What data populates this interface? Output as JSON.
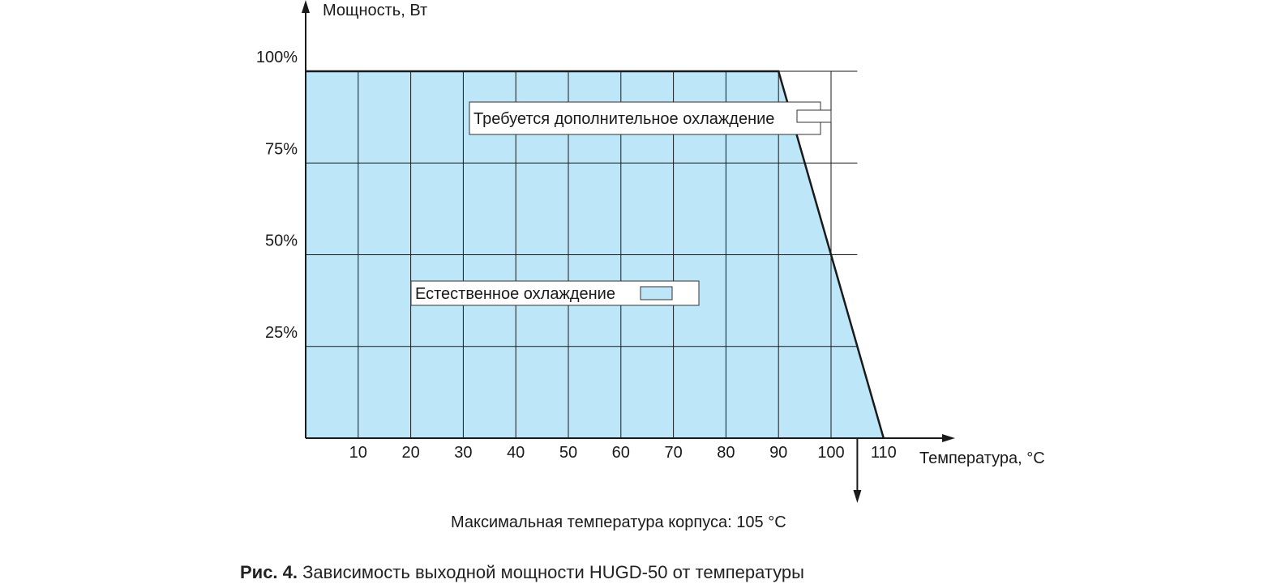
{
  "chart_data": {
    "type": "area",
    "ylabel": "Мощность, Вт",
    "xlabel": "Температура, °C",
    "x_ticks": [
      10,
      20,
      30,
      40,
      50,
      60,
      70,
      80,
      90,
      100,
      110
    ],
    "x_tick_labels": [
      "10",
      "20",
      "30",
      "40",
      "50",
      "60",
      "70",
      "80",
      "90",
      "100",
      "110"
    ],
    "y_ticks": [
      25,
      50,
      75,
      100
    ],
    "y_tick_labels": [
      "25%",
      "50%",
      "75%",
      "100%"
    ],
    "xlim": [
      0,
      105
    ],
    "ylim": [
      0,
      100
    ],
    "grid": true,
    "series": [
      {
        "x": [
          0,
          90,
          110
        ],
        "y": [
          100,
          100,
          0
        ]
      }
    ],
    "regions": [
      {
        "label": "Требуется дополнительное охлаждение",
        "color": "#ffffff"
      },
      {
        "label": "Естественное охлаждение",
        "color": "#bde6f8"
      }
    ],
    "marker": {
      "x": 105,
      "label": "Максимальная температура корпуса: 105 °C"
    },
    "colors": {
      "fill": "#bde6f8",
      "line": "#1a1a1a",
      "grid": "#1a1a1a"
    }
  },
  "caption": {
    "prefix": "Рис. 4.",
    "text": "Зависимость выходной мощности HUGD-50 от температуры"
  }
}
